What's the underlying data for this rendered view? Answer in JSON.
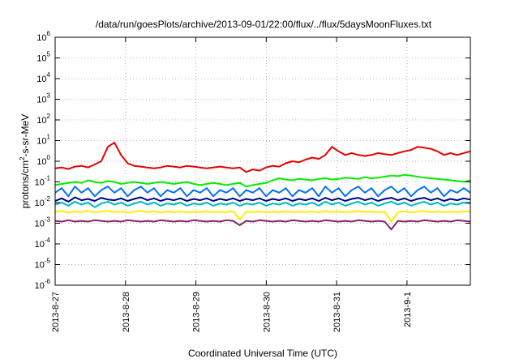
{
  "chart_data": {
    "type": "line",
    "title": "/data/run/goesPlots/archive/2013-09-01/22:00/flux/../flux/5daysMoonFluxes.txt",
    "xlabel": "Coordinated Universal Time (UTC)",
    "ylabel": "protons/cm2-s-sr-MeV",
    "ylabel_parts": {
      "pre": "protons/cm",
      "sup": "2",
      "post": "-s-sr-MeV"
    },
    "yscale": "log",
    "ylim_exp": [
      -6,
      6
    ],
    "y_ticks": [
      {
        "base": "10",
        "exp": "-6"
      },
      {
        "base": "10",
        "exp": "-5"
      },
      {
        "base": "10",
        "exp": "-4"
      },
      {
        "base": "10",
        "exp": "-3"
      },
      {
        "base": "10",
        "exp": "-2"
      },
      {
        "base": "10",
        "exp": "-1"
      },
      {
        "base": "10",
        "exp": "0"
      },
      {
        "base": "10",
        "exp": "1"
      },
      {
        "base": "10",
        "exp": "2"
      },
      {
        "base": "10",
        "exp": "3"
      },
      {
        "base": "10",
        "exp": "4"
      },
      {
        "base": "10",
        "exp": "5"
      },
      {
        "base": "10",
        "exp": "6"
      }
    ],
    "x_range_days": [
      "2013-8-27",
      "2013-9-1 + 0.9"
    ],
    "x_tick_labels": [
      "2013-8-27",
      "2013-8-28",
      "2013-8-29",
      "2013-8-30",
      "2013-8-31",
      "2013-9-1"
    ],
    "grid": true,
    "series": [
      {
        "color": "#e80000",
        "values": [
          0.45,
          0.5,
          0.42,
          0.55,
          0.6,
          0.5,
          0.7,
          1.0,
          5.0,
          8.0,
          2.0,
          0.8,
          0.6,
          0.55,
          0.5,
          0.45,
          0.5,
          0.6,
          0.55,
          0.5,
          0.6,
          0.55,
          0.5,
          0.45,
          0.5,
          0.55,
          0.5,
          0.45,
          0.5,
          0.3,
          0.4,
          0.35,
          0.5,
          0.6,
          0.55,
          0.8,
          1.0,
          0.9,
          1.2,
          1.5,
          1.3,
          2.0,
          5.0,
          3.0,
          2.0,
          2.5,
          2.0,
          1.8,
          2.0,
          2.5,
          2.2,
          2.0,
          2.5,
          3.0,
          3.5,
          5.0,
          4.5,
          4.0,
          3.0,
          2.0,
          2.5,
          2.0,
          2.5,
          3.0
        ]
      },
      {
        "color": "#00ee00",
        "values": [
          0.07,
          0.08,
          0.09,
          0.1,
          0.09,
          0.12,
          0.1,
          0.09,
          0.11,
          0.1,
          0.08,
          0.09,
          0.1,
          0.09,
          0.08,
          0.09,
          0.1,
          0.09,
          0.08,
          0.09,
          0.1,
          0.08,
          0.07,
          0.08,
          0.09,
          0.08,
          0.07,
          0.08,
          0.09,
          0.06,
          0.07,
          0.08,
          0.09,
          0.12,
          0.15,
          0.13,
          0.12,
          0.14,
          0.13,
          0.12,
          0.14,
          0.15,
          0.13,
          0.14,
          0.16,
          0.15,
          0.14,
          0.17,
          0.15,
          0.16,
          0.18,
          0.2,
          0.19,
          0.22,
          0.2,
          0.18,
          0.16,
          0.15,
          0.14,
          0.13,
          0.12,
          0.11,
          0.1,
          0.12
        ]
      },
      {
        "color": "#0070ff",
        "values": [
          0.03,
          0.05,
          0.02,
          0.06,
          0.03,
          0.05,
          0.02,
          0.04,
          0.06,
          0.03,
          0.05,
          0.02,
          0.04,
          0.06,
          0.03,
          0.05,
          0.02,
          0.04,
          0.03,
          0.05,
          0.02,
          0.04,
          0.03,
          0.05,
          0.02,
          0.04,
          0.03,
          0.05,
          0.02,
          0.04,
          0.03,
          0.05,
          0.02,
          0.04,
          0.03,
          0.05,
          0.02,
          0.04,
          0.03,
          0.05,
          0.02,
          0.06,
          0.03,
          0.05,
          0.02,
          0.04,
          0.06,
          0.03,
          0.05,
          0.02,
          0.04,
          0.06,
          0.03,
          0.05,
          0.02,
          0.04,
          0.06,
          0.03,
          0.05,
          0.02,
          0.04,
          0.03,
          0.05,
          0.03
        ]
      },
      {
        "color": "#000088",
        "values": [
          0.012,
          0.016,
          0.011,
          0.018,
          0.013,
          0.015,
          0.012,
          0.017,
          0.014,
          0.013,
          0.016,
          0.012,
          0.015,
          0.018,
          0.013,
          0.016,
          0.012,
          0.015,
          0.013,
          0.016,
          0.012,
          0.015,
          0.013,
          0.016,
          0.012,
          0.015,
          0.013,
          0.016,
          0.012,
          0.015,
          0.013,
          0.016,
          0.012,
          0.015,
          0.013,
          0.016,
          0.012,
          0.015,
          0.013,
          0.016,
          0.012,
          0.017,
          0.013,
          0.016,
          0.012,
          0.015,
          0.017,
          0.013,
          0.016,
          0.012,
          0.015,
          0.017,
          0.013,
          0.016,
          0.012,
          0.015,
          0.017,
          0.013,
          0.016,
          0.012,
          0.015,
          0.013,
          0.016,
          0.014
        ]
      },
      {
        "color": "#00bbbb",
        "values": [
          0.008,
          0.01,
          0.007,
          0.011,
          0.008,
          0.01,
          0.006,
          0.009,
          0.011,
          0.008,
          0.01,
          0.007,
          0.009,
          0.011,
          0.008,
          0.01,
          0.007,
          0.009,
          0.008,
          0.01,
          0.007,
          0.009,
          0.008,
          0.01,
          0.007,
          0.009,
          0.008,
          0.01,
          0.007,
          0.009,
          0.008,
          0.01,
          0.007,
          0.009,
          0.008,
          0.01,
          0.007,
          0.009,
          0.008,
          0.01,
          0.007,
          0.011,
          0.008,
          0.01,
          0.007,
          0.009,
          0.011,
          0.008,
          0.01,
          0.007,
          0.009,
          0.011,
          0.008,
          0.01,
          0.007,
          0.009,
          0.011,
          0.008,
          0.01,
          0.007,
          0.009,
          0.008,
          0.01,
          0.009
        ]
      },
      {
        "color": "#ffee00",
        "values": [
          0.0035,
          0.004,
          0.0032,
          0.0038,
          0.0034,
          0.004,
          0.0033,
          0.0037,
          0.0039,
          0.0034,
          0.0038,
          0.0032,
          0.0036,
          0.004,
          0.0034,
          0.0038,
          0.0032,
          0.0037,
          0.0034,
          0.0038,
          0.0033,
          0.0036,
          0.0034,
          0.0038,
          0.0033,
          0.0036,
          0.0034,
          0.0038,
          0.0015,
          0.0036,
          0.0034,
          0.0038,
          0.0033,
          0.0036,
          0.0034,
          0.0038,
          0.0033,
          0.0036,
          0.0034,
          0.0038,
          0.0033,
          0.0039,
          0.0034,
          0.0038,
          0.0033,
          0.0036,
          0.0039,
          0.0034,
          0.0038,
          0.0033,
          0.0036,
          0.0012,
          0.0034,
          0.0038,
          0.0033,
          0.0036,
          0.0039,
          0.0034,
          0.0038,
          0.0033,
          0.0036,
          0.0034,
          0.0038,
          0.0036
        ]
      },
      {
        "color": "#882266",
        "values": [
          0.0013,
          0.0012,
          0.0014,
          0.0012,
          0.0013,
          0.0012,
          0.0014,
          0.0013,
          0.0012,
          0.0013,
          0.0012,
          0.0014,
          0.0013,
          0.0012,
          0.0013,
          0.0012,
          0.0014,
          0.0013,
          0.0012,
          0.0013,
          0.0012,
          0.0014,
          0.0013,
          0.0012,
          0.0013,
          0.0012,
          0.0014,
          0.0013,
          0.0008,
          0.0013,
          0.0012,
          0.0014,
          0.0013,
          0.0012,
          0.0013,
          0.0012,
          0.0014,
          0.0013,
          0.0012,
          0.0013,
          0.0012,
          0.0014,
          0.0013,
          0.0012,
          0.0013,
          0.0012,
          0.0014,
          0.0013,
          0.0012,
          0.0013,
          0.0012,
          0.0005,
          0.0013,
          0.0012,
          0.0013,
          0.0012,
          0.0014,
          0.0013,
          0.0012,
          0.0013,
          0.0012,
          0.0014,
          0.0013,
          0.0012
        ]
      }
    ]
  }
}
